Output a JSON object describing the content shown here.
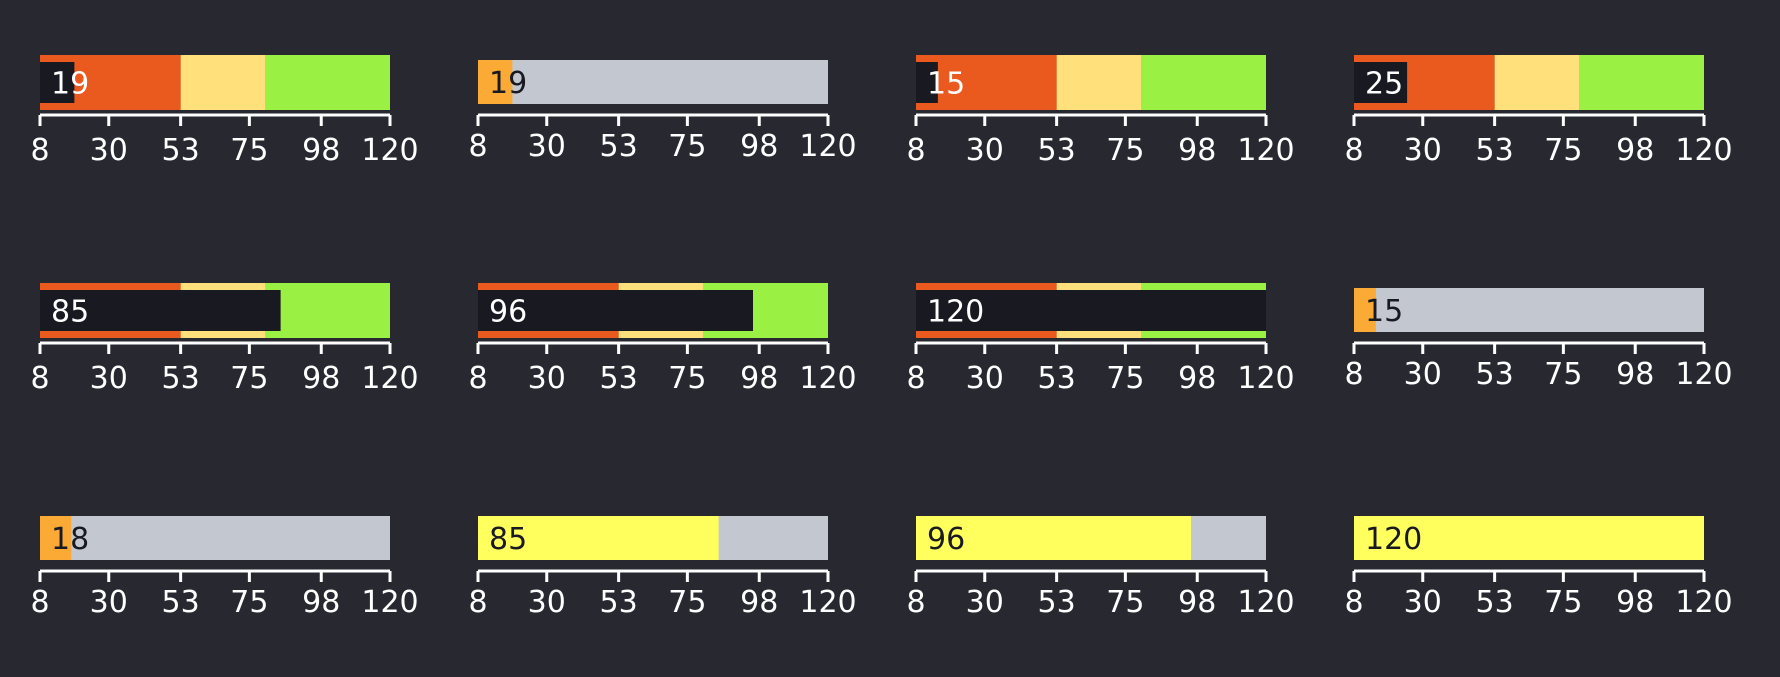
{
  "colors": {
    "background": "#282830",
    "band_low": "#ea5a1e",
    "band_mid": "#ffe07a",
    "band_high": "#9bf044",
    "track": "#c3c7d0",
    "dark_bar": "#191922",
    "orange_bar": "#fbab35",
    "yellow_bar": "#ffff5e",
    "axis": "#ffffff",
    "label_light": "#ffffff",
    "label_dark": "#191922"
  },
  "chart_data": [
    {
      "type": "bar",
      "style": "bullet-banded",
      "value": 19,
      "value_label": "19",
      "xlim": [
        8,
        120
      ],
      "bands": [
        53,
        80,
        120
      ],
      "ticks": [
        8,
        30,
        53,
        75,
        98,
        120
      ],
      "tick_labels": [
        "8",
        "30",
        "53",
        "75",
        "98",
        "120"
      ]
    },
    {
      "type": "bar",
      "style": "bullet-track",
      "value": 19,
      "value_label": "19",
      "xlim": [
        8,
        120
      ],
      "ticks": [
        8,
        30,
        53,
        75,
        98,
        120
      ],
      "tick_labels": [
        "8",
        "30",
        "53",
        "75",
        "98",
        "120"
      ]
    },
    {
      "type": "bar",
      "style": "bullet-banded",
      "value": 15,
      "value_label": "15",
      "xlim": [
        8,
        120
      ],
      "bands": [
        53,
        80,
        120
      ],
      "ticks": [
        8,
        30,
        53,
        75,
        98,
        120
      ],
      "tick_labels": [
        "8",
        "30",
        "53",
        "75",
        "98",
        "120"
      ]
    },
    {
      "type": "bar",
      "style": "bullet-banded",
      "value": 25,
      "value_label": "25",
      "xlim": [
        8,
        120
      ],
      "bands": [
        53,
        80,
        120
      ],
      "ticks": [
        8,
        30,
        53,
        75,
        98,
        120
      ],
      "tick_labels": [
        "8",
        "30",
        "53",
        "75",
        "98",
        "120"
      ]
    },
    {
      "type": "bar",
      "style": "bullet-banded",
      "value": 85,
      "value_label": "85",
      "xlim": [
        8,
        120
      ],
      "bands": [
        53,
        80,
        120
      ],
      "ticks": [
        8,
        30,
        53,
        75,
        98,
        120
      ],
      "tick_labels": [
        "8",
        "30",
        "53",
        "75",
        "98",
        "120"
      ]
    },
    {
      "type": "bar",
      "style": "bullet-banded",
      "value": 96,
      "value_label": "96",
      "xlim": [
        8,
        120
      ],
      "bands": [
        53,
        80,
        120
      ],
      "ticks": [
        8,
        30,
        53,
        75,
        98,
        120
      ],
      "tick_labels": [
        "8",
        "30",
        "53",
        "75",
        "98",
        "120"
      ]
    },
    {
      "type": "bar",
      "style": "bullet-banded",
      "value": 120,
      "value_label": "120",
      "xlim": [
        8,
        120
      ],
      "bands": [
        53,
        80,
        120
      ],
      "ticks": [
        8,
        30,
        53,
        75,
        98,
        120
      ],
      "tick_labels": [
        "8",
        "30",
        "53",
        "75",
        "98",
        "120"
      ]
    },
    {
      "type": "bar",
      "style": "bullet-track",
      "value": 15,
      "value_label": "15",
      "xlim": [
        8,
        120
      ],
      "ticks": [
        8,
        30,
        53,
        75,
        98,
        120
      ],
      "tick_labels": [
        "8",
        "30",
        "53",
        "75",
        "98",
        "120"
      ]
    },
    {
      "type": "bar",
      "style": "bullet-track",
      "value": 18,
      "value_label": "18",
      "xlim": [
        8,
        120
      ],
      "ticks": [
        8,
        30,
        53,
        75,
        98,
        120
      ],
      "tick_labels": [
        "8",
        "30",
        "53",
        "75",
        "98",
        "120"
      ]
    },
    {
      "type": "bar",
      "style": "bullet-track-yellow",
      "value": 85,
      "value_label": "85",
      "xlim": [
        8,
        120
      ],
      "ticks": [
        8,
        30,
        53,
        75,
        98,
        120
      ],
      "tick_labels": [
        "8",
        "30",
        "53",
        "75",
        "98",
        "120"
      ]
    },
    {
      "type": "bar",
      "style": "bullet-track-yellow",
      "value": 96,
      "value_label": "96",
      "xlim": [
        8,
        120
      ],
      "ticks": [
        8,
        30,
        53,
        75,
        98,
        120
      ],
      "tick_labels": [
        "8",
        "30",
        "53",
        "75",
        "98",
        "120"
      ]
    },
    {
      "type": "bar",
      "style": "bullet-track-yellow",
      "value": 120,
      "value_label": "120",
      "xlim": [
        8,
        120
      ],
      "ticks": [
        8,
        30,
        53,
        75,
        98,
        120
      ],
      "tick_labels": [
        "8",
        "30",
        "53",
        "75",
        "98",
        "120"
      ]
    }
  ]
}
